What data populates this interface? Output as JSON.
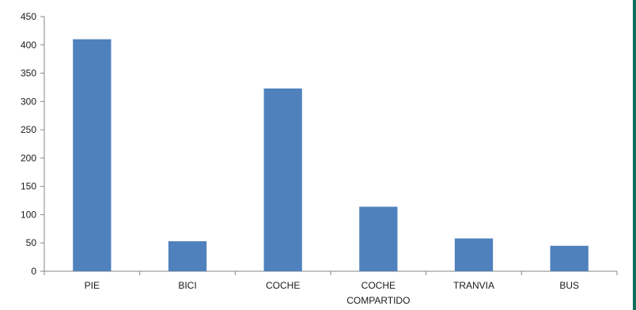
{
  "chart_data": {
    "type": "bar",
    "title": "",
    "categories": [
      "PIE",
      "BICI",
      "COCHE",
      "COCHE COMPARTIDO",
      "TRANVIA",
      "BUS"
    ],
    "category_label_lines": [
      [
        "PIE"
      ],
      [
        "BICI"
      ],
      [
        "COCHE"
      ],
      [
        "COCHE",
        "COMPARTIDO"
      ],
      [
        "TRANVIA"
      ],
      [
        "BUS"
      ]
    ],
    "values": [
      410,
      53,
      323,
      114,
      58,
      45
    ],
    "ylim": [
      0,
      450
    ],
    "yticks": [
      0,
      50,
      100,
      150,
      200,
      250,
      300,
      350,
      400,
      450
    ],
    "grid": false,
    "legend": "none",
    "bar_color": "#4f81bd"
  }
}
